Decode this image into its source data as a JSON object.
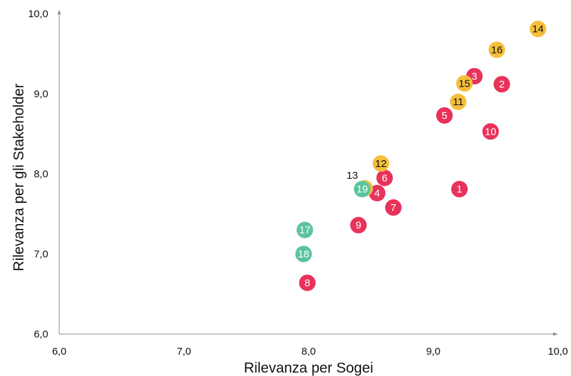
{
  "chart_data": {
    "type": "scatter",
    "xlabel": "Rilevanza per Sogei",
    "ylabel": "Rilevanza per gli Stakeholder",
    "xlim": [
      6.0,
      10.0
    ],
    "ylim": [
      6.0,
      10.0
    ],
    "xticks": [
      "6,0",
      "7,0",
      "8,0",
      "9,0",
      "10,0"
    ],
    "yticks": [
      "6,0",
      "7,0",
      "8,0",
      "9,0",
      "10,0"
    ],
    "grid": false,
    "legend": "none",
    "colors": {
      "red": "#e8325a",
      "yellow": "#f5bf3c",
      "green": "#5cc49d"
    },
    "series": [
      {
        "color": "red",
        "points": [
          {
            "label": "1",
            "x": 9.21,
            "y": 7.81
          },
          {
            "label": "2",
            "x": 9.55,
            "y": 9.12
          },
          {
            "label": "3",
            "x": 9.33,
            "y": 9.22
          },
          {
            "label": "4",
            "x": 8.55,
            "y": 7.76
          },
          {
            "label": "5",
            "x": 9.09,
            "y": 8.73
          },
          {
            "label": "6",
            "x": 8.61,
            "y": 7.95
          },
          {
            "label": "7",
            "x": 8.68,
            "y": 7.58
          },
          {
            "label": "8",
            "x": 7.99,
            "y": 6.64
          },
          {
            "label": "9",
            "x": 8.4,
            "y": 7.36
          },
          {
            "label": "10",
            "x": 9.46,
            "y": 8.53
          }
        ]
      },
      {
        "color": "yellow",
        "points": [
          {
            "label": "11",
            "x": 9.2,
            "y": 8.9
          },
          {
            "label": "12",
            "x": 8.58,
            "y": 8.13
          },
          {
            "label": "13",
            "x": 8.45,
            "y": 7.82,
            "label_outside": true
          },
          {
            "label": "14",
            "x": 9.84,
            "y": 9.81
          },
          {
            "label": "15",
            "x": 9.25,
            "y": 9.13
          },
          {
            "label": "16",
            "x": 9.51,
            "y": 9.55
          }
        ]
      },
      {
        "color": "green",
        "points": [
          {
            "label": "17",
            "x": 7.97,
            "y": 7.3
          },
          {
            "label": "18",
            "x": 7.96,
            "y": 7.0
          },
          {
            "label": "19",
            "x": 8.43,
            "y": 7.81
          }
        ]
      }
    ]
  }
}
